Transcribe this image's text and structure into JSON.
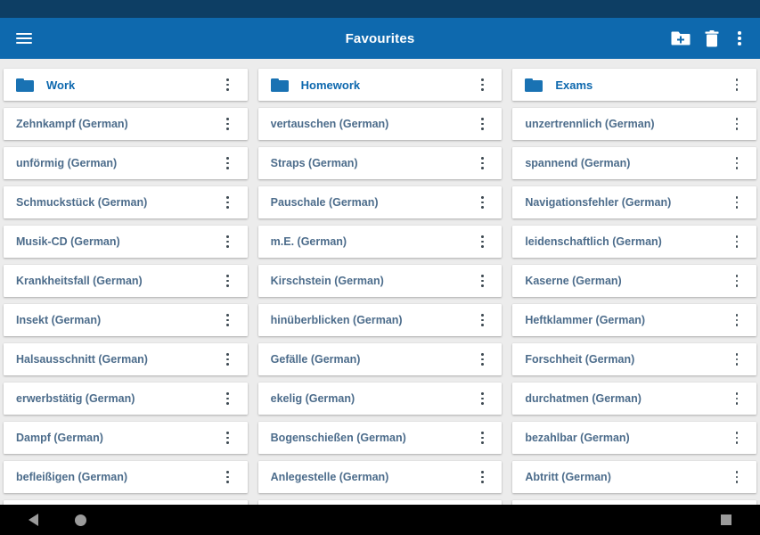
{
  "app_bar": {
    "title": "Favourites",
    "menu_icon": "hamburger-icon",
    "actions": [
      {
        "id": "add-folder",
        "icon": "folder-plus-icon"
      },
      {
        "id": "delete",
        "icon": "trash-icon"
      },
      {
        "id": "more",
        "icon": "overflow-dots-icon"
      }
    ]
  },
  "columns": [
    {
      "folder": "Work",
      "items": [
        "Zehnkampf (German)",
        "unförmig (German)",
        "Schmuckstück (German)",
        "Musik-CD (German)",
        "Krankheitsfall (German)",
        "Insekt (German)",
        "Halsausschnitt (German)",
        "erwerbstätig (German)",
        "Dampf (German)",
        "befleißigen (German)"
      ]
    },
    {
      "folder": "Homework",
      "items": [
        "vertauschen (German)",
        "Straps (German)",
        "Pauschale (German)",
        "m.E. (German)",
        "Kirschstein (German)",
        "hinüberblicken (German)",
        "Gefälle (German)",
        "ekelig (German)",
        "Bogenschießen (German)",
        "Anlegestelle (German)"
      ]
    },
    {
      "folder": "Exams",
      "items": [
        "unzertrennlich (German)",
        "spannend (German)",
        "Navigationsfehler (German)",
        "leidenschaftlich (German)",
        "Kaserne (German)",
        "Heftklammer (German)",
        "Forschheit (German)",
        "durchatmen (German)",
        "bezahlbar (German)",
        "Abtritt (German)"
      ]
    }
  ],
  "nav_bar": {
    "back_icon": "back-triangle-icon",
    "home_icon": "home-circle-icon",
    "recents_icon": "recents-square-icon"
  },
  "colors": {
    "status_bar": "#0d3e64",
    "app_bar": "#0e69ae",
    "background": "#ececec",
    "card": "#ffffff",
    "folder_icon": "#1972b3",
    "folder_text": "#0d68ae",
    "word_text": "#4c6c8b",
    "row_dots": "#3e4a52",
    "nav_bar": "#000000",
    "nav_icon": "#9b9b9b"
  }
}
